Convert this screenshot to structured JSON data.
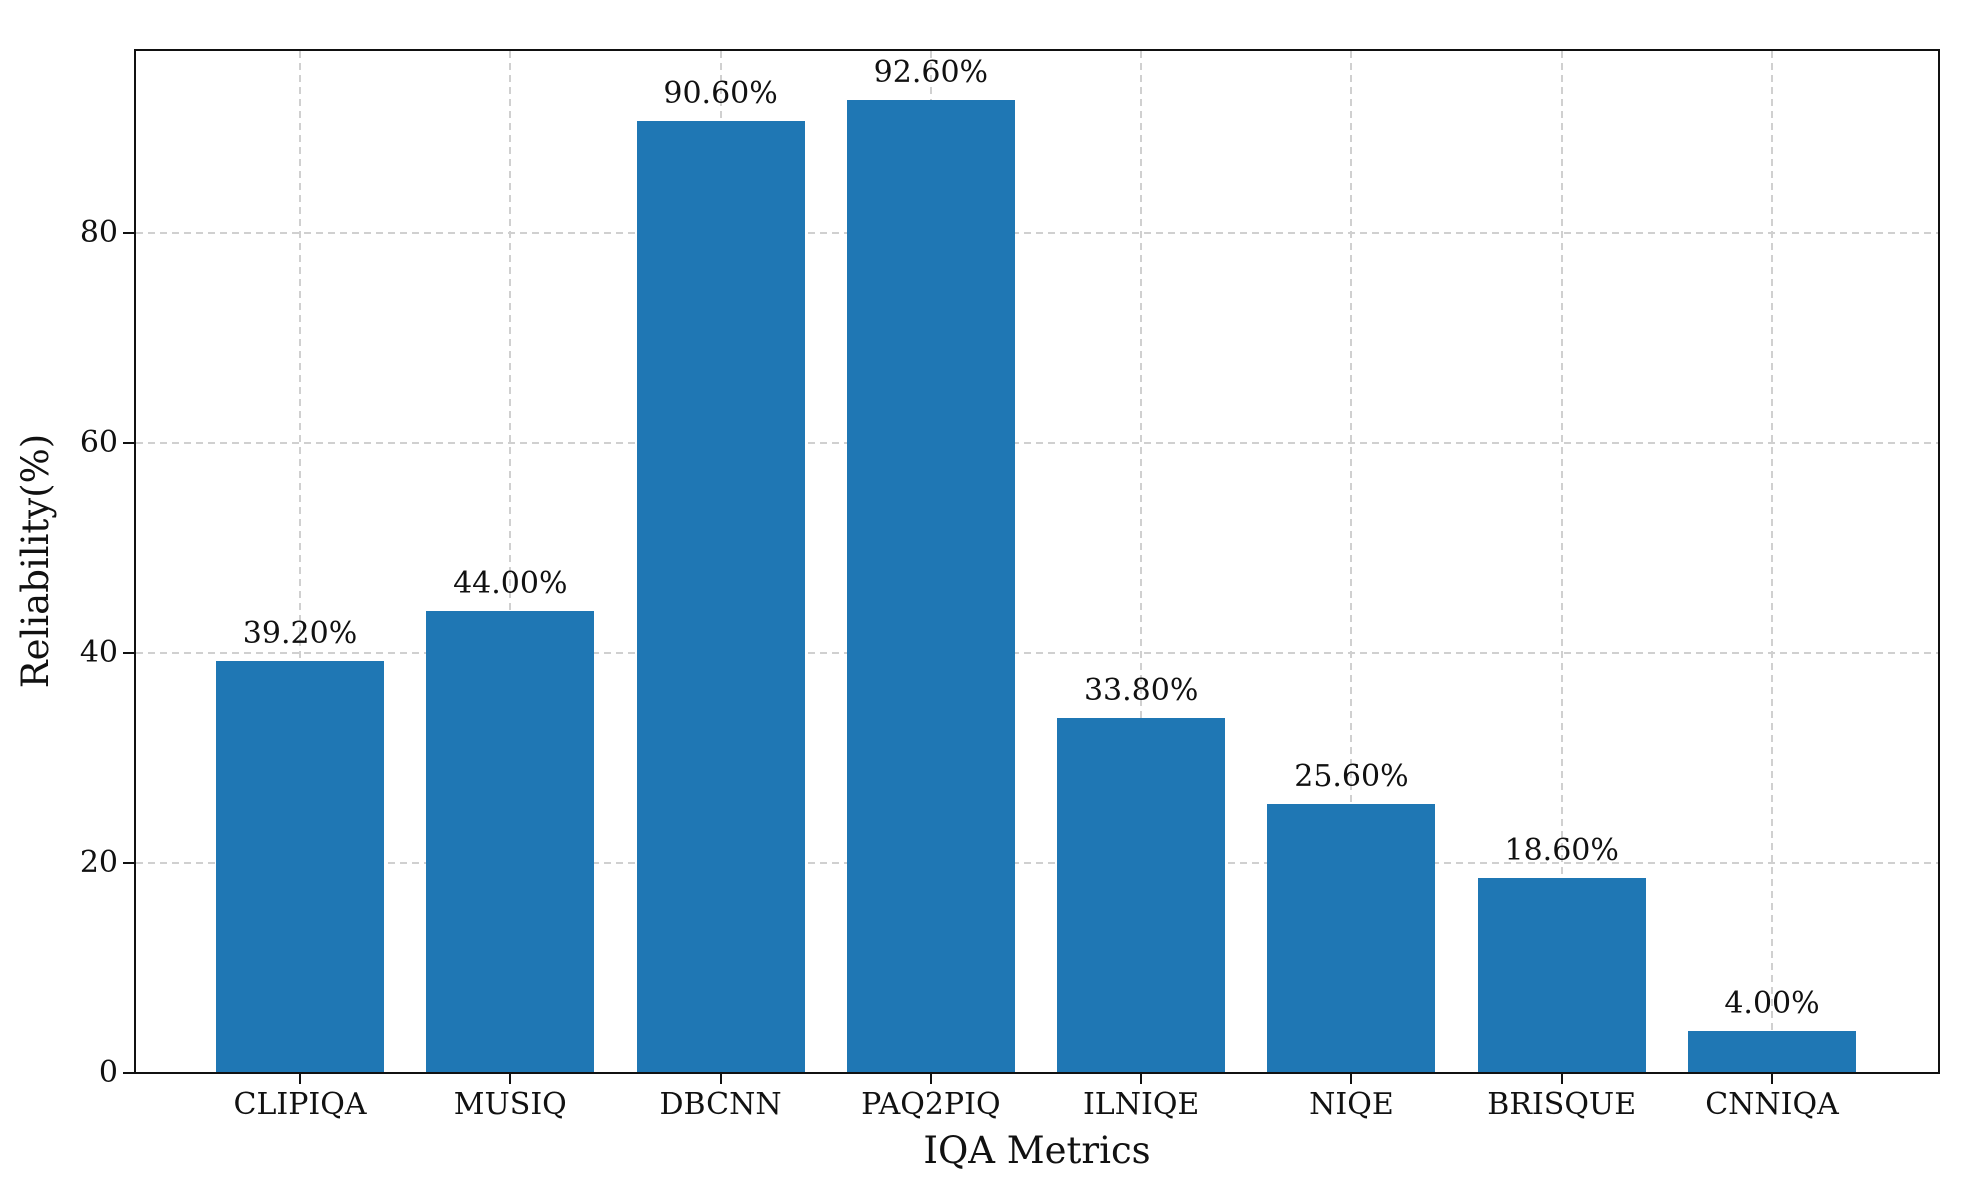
{
  "chart_data": {
    "type": "bar",
    "title": "",
    "xlabel": "IQA Metrics",
    "ylabel": "Reliability(%)",
    "categories": [
      "CLIPIQA",
      "MUSIQ",
      "DBCNN",
      "PAQ2PIQ",
      "ILNIQE",
      "NIQE",
      "BRISQUE",
      "CNNIQA"
    ],
    "values": [
      39.2,
      44.0,
      90.6,
      92.6,
      33.8,
      25.6,
      18.6,
      4.0
    ],
    "value_labels": [
      "39.20%",
      "44.00%",
      "90.60%",
      "92.60%",
      "33.80%",
      "25.60%",
      "18.60%",
      "4.00%"
    ],
    "yticks": [
      0,
      20,
      40,
      60,
      80
    ],
    "ylim": [
      0,
      97.4
    ],
    "grid": "dashed-both-axes",
    "legend": "none",
    "bar_color": "#1f77b4",
    "gridline_color": "#d0d0d0",
    "axis_color": "#111111",
    "background_color": "#ffffff"
  }
}
